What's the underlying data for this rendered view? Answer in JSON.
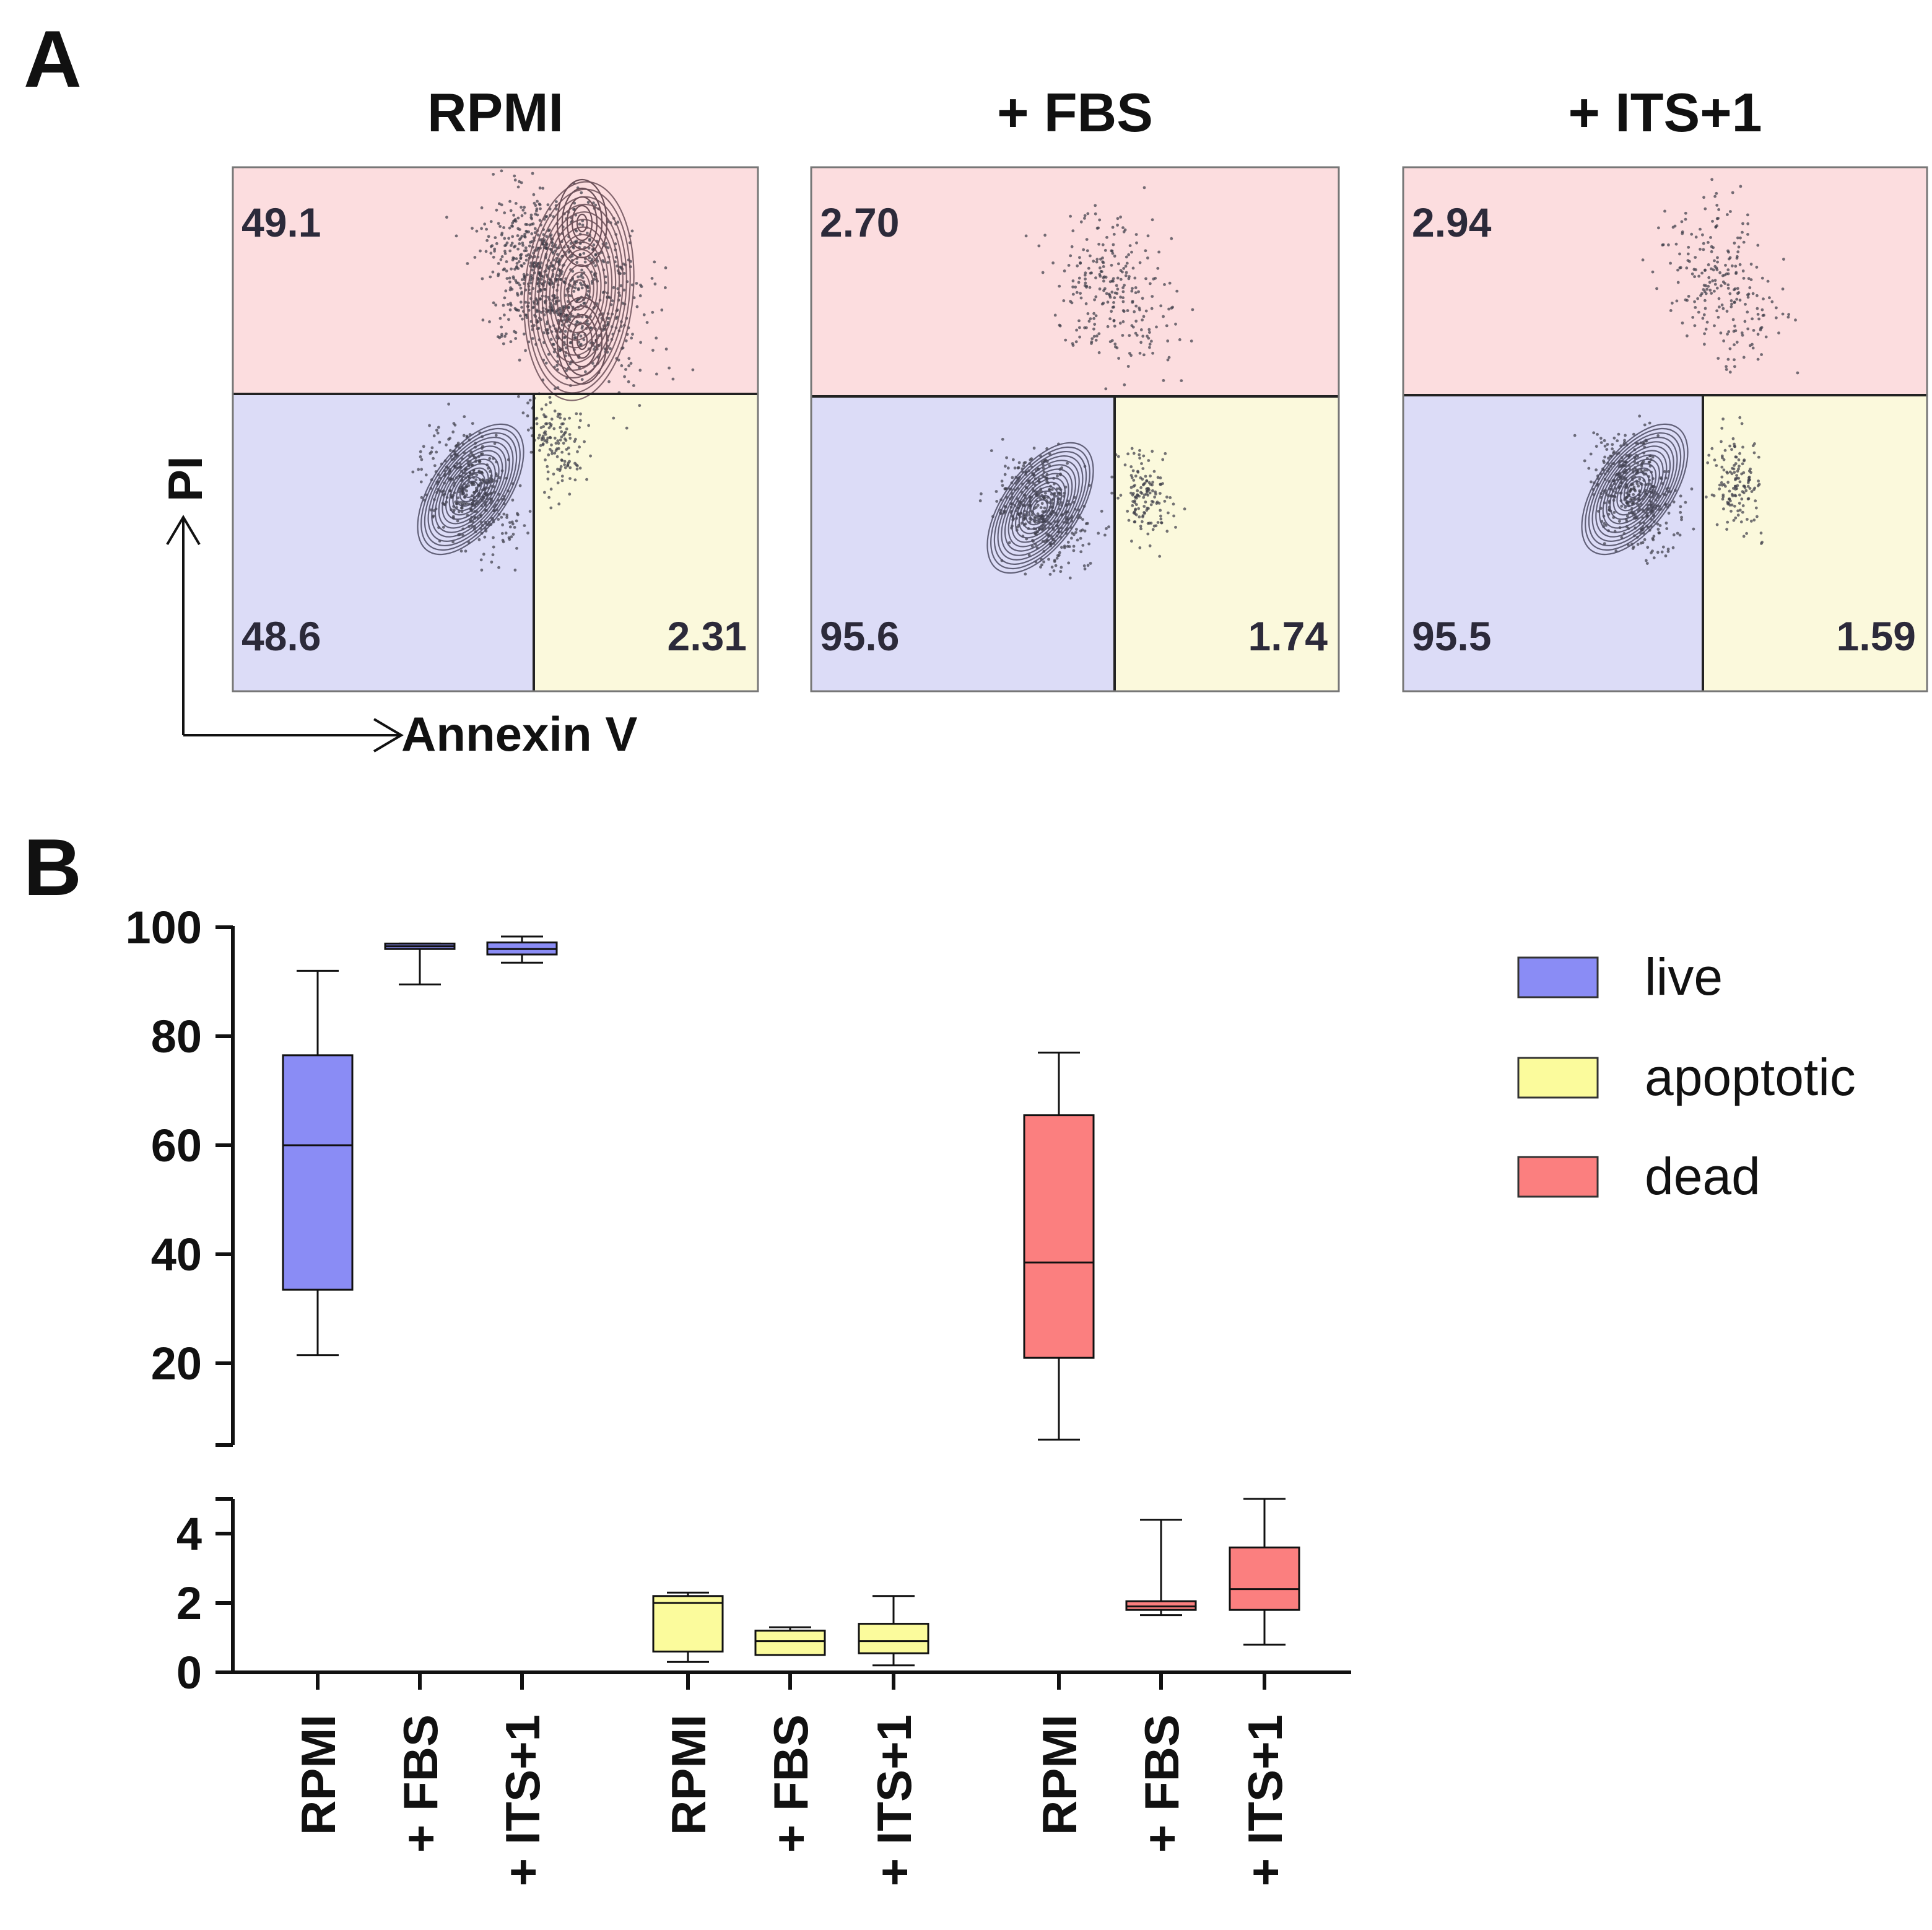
{
  "panel_labels": {
    "a": "A",
    "b": "B"
  },
  "flow": {
    "x_axis_label": "Annexin V",
    "y_axis_label": "PI",
    "plots": [
      {
        "title": "RPMI",
        "upper": "49.1",
        "lower_left": "48.6",
        "lower_right": "2.31"
      },
      {
        "title": "+ FBS",
        "upper": "2.70",
        "lower_left": "95.6",
        "lower_right": "1.74"
      },
      {
        "title": "+ ITS+1",
        "upper": "2.94",
        "lower_left": "95.5",
        "lower_right": "1.59"
      }
    ],
    "colors": {
      "upper": "#fcdddf",
      "lower_left": "#dcdcf7",
      "lower_right": "#fbf9dc",
      "contour": "#4b4a62",
      "contour_upper": "#6b4f58"
    }
  },
  "chart_data": {
    "type": "box",
    "categories": [
      "RPMI",
      "+ FBS",
      "+ ITS+1"
    ],
    "y_ticks_upper": [
      "20",
      "40",
      "60",
      "80",
      "100"
    ],
    "y_ticks_lower": [
      "0",
      "2",
      "4"
    ],
    "ylim_upper": [
      5,
      100
    ],
    "ylim_lower": [
      0,
      5
    ],
    "legend_position": "top-right",
    "series": [
      {
        "name": "live",
        "color": "#8a8cf5",
        "boxes": [
          {
            "category": "RPMI",
            "min": 21.5,
            "q1": 33.5,
            "median": 60.0,
            "q3": 76.5,
            "max": 92.0
          },
          {
            "category": "+ FBS",
            "min": 89.5,
            "q1": 96.0,
            "median": 96.5,
            "q3": 97.0,
            "max": 97.0
          },
          {
            "category": "+ ITS+1",
            "min": 93.5,
            "q1": 95.0,
            "median": 96.0,
            "q3": 97.2,
            "max": 98.3
          }
        ]
      },
      {
        "name": "apoptotic",
        "color": "#fbfb9c",
        "boxes": [
          {
            "category": "RPMI",
            "min": 0.3,
            "q1": 0.6,
            "median": 2.0,
            "q3": 2.2,
            "max": 2.3
          },
          {
            "category": "+ FBS",
            "min": 0.5,
            "q1": 0.5,
            "median": 0.9,
            "q3": 1.2,
            "max": 1.3
          },
          {
            "category": "+ ITS+1",
            "min": 0.2,
            "q1": 0.55,
            "median": 0.9,
            "q3": 1.4,
            "max": 2.2
          }
        ]
      },
      {
        "name": "dead",
        "color": "#fb7f7f",
        "boxes": [
          {
            "category": "RPMI",
            "min": 6.0,
            "q1": 21.0,
            "median": 38.5,
            "q3": 65.5,
            "max": 77.0
          },
          {
            "category": "+ FBS",
            "min": 1.65,
            "q1": 1.8,
            "median": 1.9,
            "q3": 2.05,
            "max": 4.4
          },
          {
            "category": "+ ITS+1",
            "min": 0.8,
            "q1": 1.8,
            "median": 2.4,
            "q3": 3.6,
            "max": 5.0
          }
        ]
      }
    ]
  }
}
